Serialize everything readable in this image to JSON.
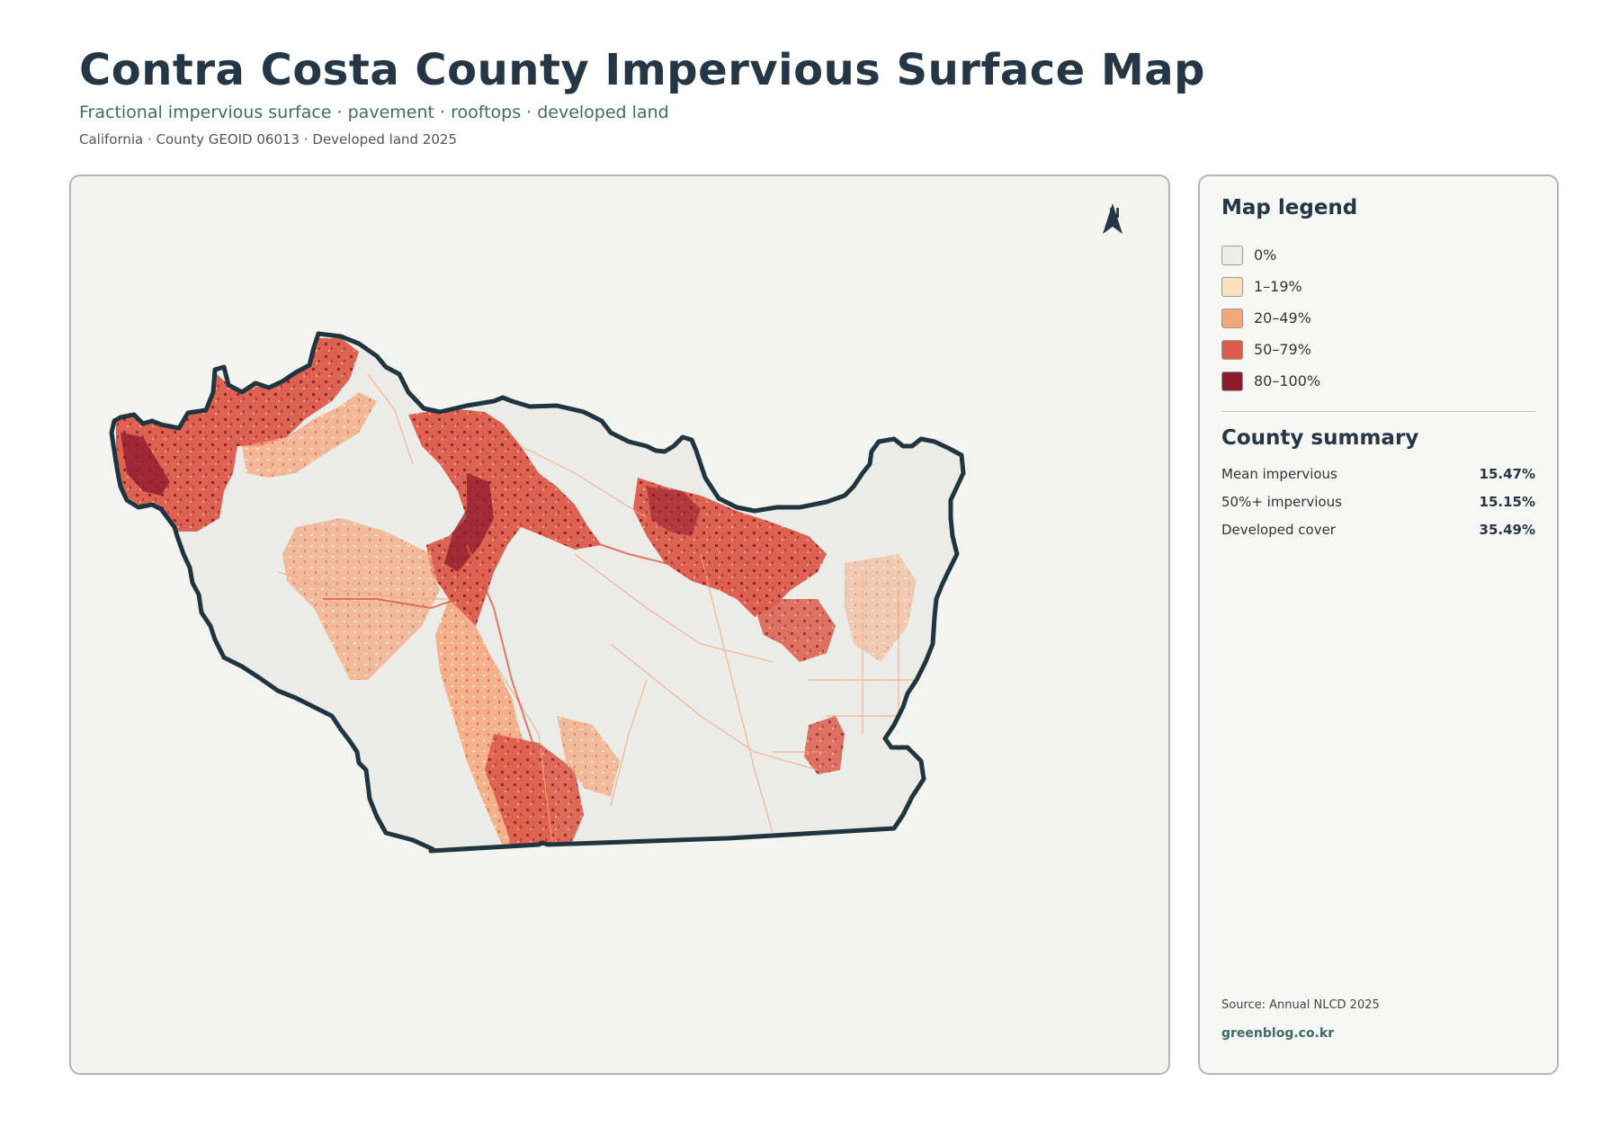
{
  "header": {
    "title": "Contra Costa County Impervious Surface Map",
    "subtitle": "Fractional impervious surface · pavement · rooftops · developed land",
    "meta": "California · County GEOID 06013 · Developed land 2025"
  },
  "map": {
    "north_label": "N",
    "icons": {
      "north_arrow": "north-arrow-icon"
    }
  },
  "legend": {
    "title": "Map legend",
    "items": [
      {
        "label": "0%",
        "color": "#ececea"
      },
      {
        "label": "1–19%",
        "color": "#fde0c0"
      },
      {
        "label": "20–49%",
        "color": "#f4a57a"
      },
      {
        "label": "50–79%",
        "color": "#dd5b4a"
      },
      {
        "label": "80–100%",
        "color": "#8e1a30"
      }
    ]
  },
  "summary": {
    "title": "County summary",
    "rows": [
      {
        "label": "Mean impervious",
        "value": "15.47%"
      },
      {
        "label": "50%+ impervious",
        "value": "15.15%"
      },
      {
        "label": "Developed cover",
        "value": "35.49%"
      }
    ]
  },
  "footer": {
    "source": "Source: Annual NLCD 2025",
    "site": "greenblog.co.kr"
  },
  "colors": {
    "boundary": "#1f3540",
    "land": "#ebece8",
    "panel": "#f3f3f0"
  }
}
